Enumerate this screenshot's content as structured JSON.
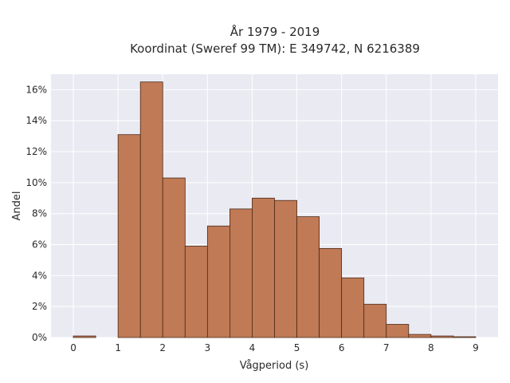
{
  "chart_data": {
    "type": "bar",
    "title_line1": "År 1979 - 2019",
    "title_line2": "Koordinat (Sweref 99 TM): E 349742, N 6216389",
    "xlabel": "Vågperiod (s)",
    "ylabel": "Andel",
    "bin_width": 0.5,
    "bin_starts": [
      0,
      0.5,
      1,
      1.5,
      2,
      2.5,
      3,
      3.5,
      4,
      4.5,
      5,
      5.5,
      6,
      6.5,
      7,
      7.5,
      8,
      8.5
    ],
    "values": [
      0.1,
      0,
      13.1,
      16.5,
      10.3,
      5.9,
      7.2,
      8.3,
      9.0,
      8.85,
      7.8,
      5.75,
      3.85,
      2.15,
      0.85,
      0.2,
      0.1,
      0.05
    ],
    "xlim": [
      -0.5,
      9.5
    ],
    "ylim": [
      0,
      17
    ],
    "xticks": [
      0,
      1,
      2,
      3,
      4,
      5,
      6,
      7,
      8,
      9
    ],
    "yticks": [
      0,
      2,
      4,
      6,
      8,
      10,
      12,
      14,
      16
    ],
    "ytick_labels": [
      "0%",
      "2%",
      "4%",
      "6%",
      "8%",
      "10%",
      "12%",
      "14%",
      "16%"
    ],
    "grid": true,
    "colors": {
      "bar_fill": "#c07a55",
      "bar_edge": "#4a2a1a",
      "plot_bg": "#eaeaf2",
      "grid": "#ffffff"
    }
  }
}
